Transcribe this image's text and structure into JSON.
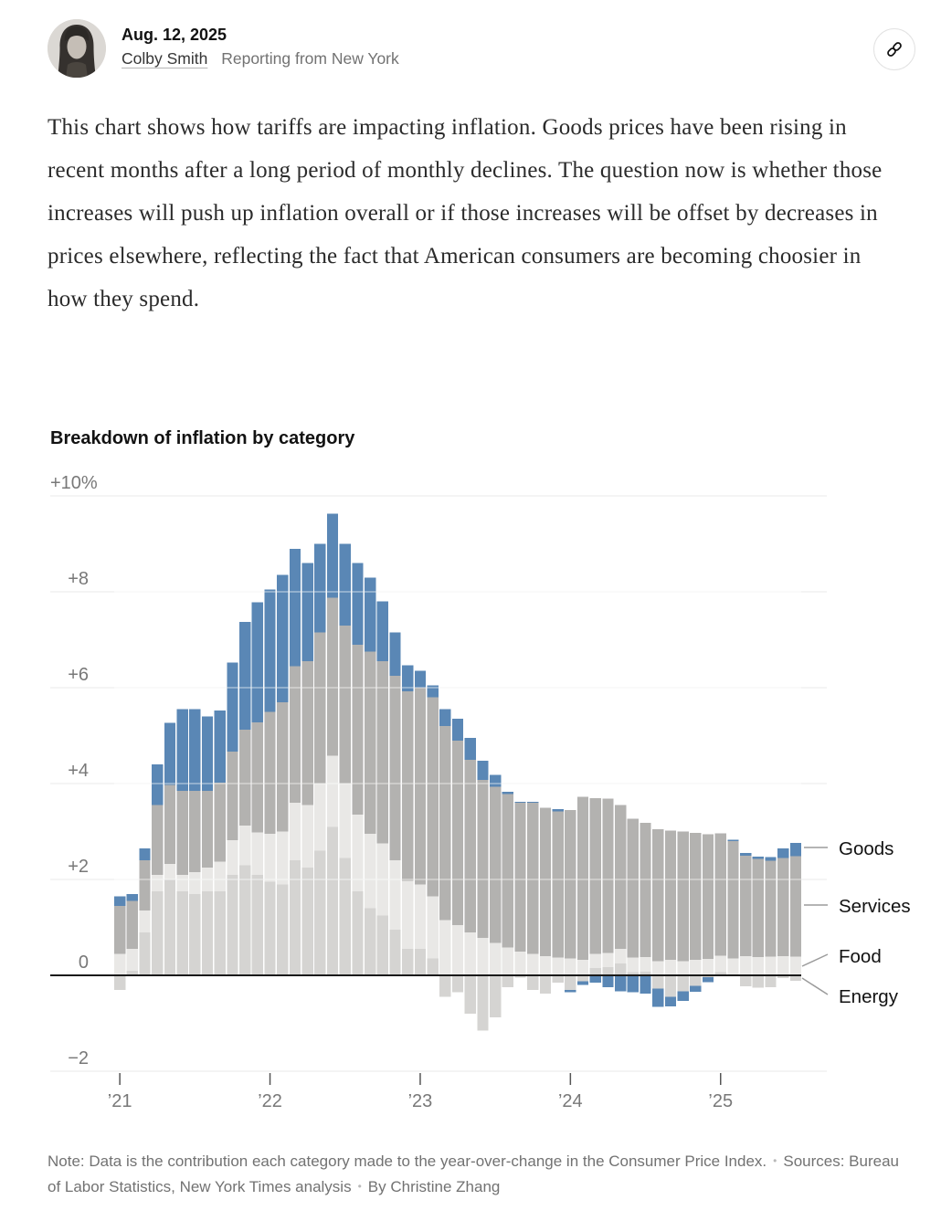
{
  "header": {
    "date": "Aug. 12, 2025",
    "author": "Colby Smith",
    "location": "Reporting from New York"
  },
  "article": {
    "paragraph": "This chart shows how tariffs are impacting inflation. Goods prices have been rising in recent months after a long period of monthly declines. The question now is whether those increases will push up inflation overall or if those increases will be offset by decreases in prices elsewhere, reflecting the fact that American consumers are becoming choosier in how they spend."
  },
  "chart_note": {
    "note_text": "Note: Data is the contribution each category made to the year-over-change in the Consumer Price Index.",
    "separator": "•",
    "sources_text": "Sources: Bureau of Labor Statistics, New York Times analysis",
    "byline": "By Christine Zhang"
  },
  "chart_data": {
    "type": "bar",
    "stacked": true,
    "title": "Breakdown of inflation by category",
    "unit": "percentage-point contribution to year-over-year change in CPI",
    "ylim": [
      -2.5,
      10
    ],
    "grid": true,
    "legend_position": "right",
    "y_ticks": [
      {
        "value": 10,
        "label": "+10%"
      },
      {
        "value": 8,
        "label": "+8"
      },
      {
        "value": 6,
        "label": "+6"
      },
      {
        "value": 4,
        "label": "+4"
      },
      {
        "value": 2,
        "label": "+2"
      },
      {
        "value": 0,
        "label": "0"
      },
      {
        "value": -2,
        "label": "−2"
      }
    ],
    "x_ticks": [
      {
        "index": 0,
        "label": "’21"
      },
      {
        "index": 12,
        "label": "’22"
      },
      {
        "index": 24,
        "label": "’23"
      },
      {
        "index": 36,
        "label": "’24"
      },
      {
        "index": 48,
        "label": "’25"
      }
    ],
    "x": [
      "2021-01",
      "2021-02",
      "2021-03",
      "2021-04",
      "2021-05",
      "2021-06",
      "2021-07",
      "2021-08",
      "2021-09",
      "2021-10",
      "2021-11",
      "2021-12",
      "2022-01",
      "2022-02",
      "2022-03",
      "2022-04",
      "2022-05",
      "2022-06",
      "2022-07",
      "2022-08",
      "2022-09",
      "2022-10",
      "2022-11",
      "2022-12",
      "2023-01",
      "2023-02",
      "2023-03",
      "2023-04",
      "2023-05",
      "2023-06",
      "2023-07",
      "2023-08",
      "2023-09",
      "2023-10",
      "2023-11",
      "2023-12",
      "2024-01",
      "2024-02",
      "2024-03",
      "2024-04",
      "2024-05",
      "2024-06",
      "2024-07",
      "2024-08",
      "2024-09",
      "2024-10",
      "2024-11",
      "2024-12",
      "2025-01",
      "2025-02",
      "2025-03",
      "2025-04",
      "2025-05",
      "2025-06",
      "2025-07"
    ],
    "series": [
      {
        "name": "Energy",
        "color": "#d5d4d2",
        "values": [
          -0.3,
          0.1,
          0.9,
          1.75,
          2.0,
          1.75,
          1.7,
          1.75,
          1.75,
          2.1,
          2.3,
          2.1,
          1.95,
          1.9,
          2.4,
          2.25,
          2.6,
          3.1,
          2.45,
          1.75,
          1.4,
          1.25,
          0.95,
          0.55,
          0.55,
          0.35,
          -0.45,
          -0.35,
          -0.8,
          -1.15,
          -0.88,
          -0.25,
          -0.05,
          -0.3,
          -0.38,
          -0.15,
          -0.3,
          -0.12,
          0.15,
          0.17,
          0.25,
          0.07,
          0.08,
          -0.28,
          -0.45,
          -0.33,
          -0.22,
          -0.04,
          0.07,
          -0.01,
          -0.23,
          -0.26,
          -0.25,
          -0.06,
          -0.11
        ]
      },
      {
        "name": "Food",
        "color": "#e9e8e6",
        "values": [
          0.45,
          0.45,
          0.45,
          0.35,
          0.32,
          0.35,
          0.45,
          0.5,
          0.62,
          0.72,
          0.82,
          0.88,
          1.0,
          1.1,
          1.2,
          1.3,
          1.4,
          1.48,
          1.55,
          1.6,
          1.55,
          1.5,
          1.45,
          1.42,
          1.35,
          1.3,
          1.15,
          1.05,
          0.9,
          0.78,
          0.68,
          0.58,
          0.5,
          0.45,
          0.4,
          0.37,
          0.35,
          0.32,
          0.3,
          0.3,
          0.3,
          0.3,
          0.3,
          0.3,
          0.32,
          0.3,
          0.32,
          0.34,
          0.34,
          0.35,
          0.4,
          0.38,
          0.39,
          0.4,
          0.39
        ]
      },
      {
        "name": "Services",
        "color": "#b3b2b0",
        "values": [
          1.0,
          1.0,
          1.05,
          1.45,
          1.65,
          1.75,
          1.7,
          1.6,
          1.65,
          1.85,
          2.0,
          2.3,
          2.55,
          2.7,
          2.85,
          3.0,
          3.15,
          3.3,
          3.3,
          3.55,
          3.8,
          3.8,
          3.85,
          3.95,
          4.1,
          4.15,
          4.05,
          3.85,
          3.6,
          3.3,
          3.25,
          3.2,
          3.1,
          3.15,
          3.1,
          3.05,
          3.1,
          3.4,
          3.25,
          3.22,
          3.0,
          2.9,
          2.8,
          2.75,
          2.7,
          2.7,
          2.65,
          2.6,
          2.55,
          2.45,
          2.1,
          2.05,
          2.0,
          2.05,
          2.1
        ]
      },
      {
        "name": "Goods",
        "color": "#5a87b5",
        "values": [
          0.2,
          0.15,
          0.25,
          0.85,
          1.3,
          1.7,
          1.7,
          1.55,
          1.5,
          1.85,
          2.25,
          2.5,
          2.55,
          2.65,
          2.45,
          2.05,
          1.85,
          1.75,
          1.7,
          1.7,
          1.55,
          1.25,
          0.9,
          0.55,
          0.35,
          0.25,
          0.35,
          0.45,
          0.45,
          0.4,
          0.25,
          0.05,
          0.02,
          0.02,
          0.0,
          0.05,
          -0.05,
          -0.08,
          -0.15,
          -0.25,
          -0.33,
          -0.35,
          -0.38,
          -0.38,
          -0.2,
          -0.2,
          -0.12,
          -0.1,
          0.0,
          0.03,
          0.05,
          0.05,
          0.08,
          0.2,
          0.27
        ]
      }
    ],
    "legend": [
      "Goods",
      "Services",
      "Food",
      "Energy"
    ]
  }
}
